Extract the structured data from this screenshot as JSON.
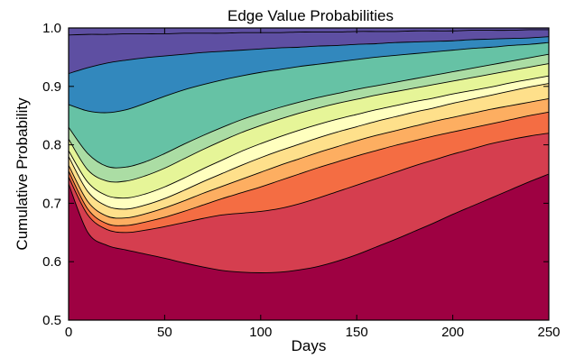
{
  "chart_data": {
    "type": "area",
    "stacked": true,
    "title": "Edge Value Probabilities",
    "xlabel": "Days",
    "ylabel": "Cumulative Probability",
    "xlim": [
      0,
      250
    ],
    "ylim": [
      0.5,
      1.0
    ],
    "xticks": [
      "0",
      "50",
      "100",
      "150",
      "200",
      "250"
    ],
    "yticks": [
      "0.5",
      "0.6",
      "0.7",
      "0.8",
      "0.9",
      "1.0"
    ],
    "grid": false,
    "legend": "none",
    "x": [
      0,
      10,
      20,
      30,
      40,
      50,
      60,
      70,
      80,
      90,
      100,
      110,
      120,
      130,
      140,
      150,
      160,
      170,
      180,
      190,
      200,
      210,
      220,
      230,
      240,
      250
    ],
    "boundaries": [
      {
        "color": "#9e0142",
        "values": [
          0.733,
          0.65,
          0.628,
          0.62,
          0.613,
          0.606,
          0.598,
          0.591,
          0.585,
          0.582,
          0.581,
          0.582,
          0.586,
          0.592,
          0.601,
          0.612,
          0.625,
          0.638,
          0.652,
          0.666,
          0.681,
          0.695,
          0.709,
          0.723,
          0.737,
          0.75
        ]
      },
      {
        "color": "#d53e4f",
        "values": [
          0.745,
          0.68,
          0.655,
          0.65,
          0.654,
          0.66,
          0.667,
          0.674,
          0.68,
          0.683,
          0.686,
          0.691,
          0.699,
          0.709,
          0.72,
          0.731,
          0.742,
          0.753,
          0.764,
          0.774,
          0.784,
          0.793,
          0.802,
          0.809,
          0.815,
          0.82
        ]
      },
      {
        "color": "#f46d43",
        "values": [
          0.755,
          0.69,
          0.665,
          0.662,
          0.668,
          0.676,
          0.686,
          0.697,
          0.708,
          0.718,
          0.728,
          0.739,
          0.75,
          0.761,
          0.771,
          0.781,
          0.79,
          0.799,
          0.807,
          0.815,
          0.822,
          0.829,
          0.836,
          0.843,
          0.85,
          0.856
        ]
      },
      {
        "color": "#fdae61",
        "values": [
          0.765,
          0.703,
          0.678,
          0.675,
          0.682,
          0.692,
          0.704,
          0.717,
          0.729,
          0.741,
          0.753,
          0.765,
          0.776,
          0.787,
          0.797,
          0.807,
          0.816,
          0.824,
          0.832,
          0.84,
          0.847,
          0.854,
          0.861,
          0.867,
          0.873,
          0.879
        ]
      },
      {
        "color": "#fee08b",
        "values": [
          0.78,
          0.72,
          0.695,
          0.69,
          0.697,
          0.708,
          0.722,
          0.737,
          0.751,
          0.765,
          0.778,
          0.79,
          0.801,
          0.812,
          0.822,
          0.831,
          0.84,
          0.848,
          0.856,
          0.863,
          0.871,
          0.878,
          0.885,
          0.892,
          0.899,
          0.905
        ]
      },
      {
        "color": "#ffffbf",
        "values": [
          0.79,
          0.736,
          0.713,
          0.709,
          0.716,
          0.728,
          0.743,
          0.759,
          0.774,
          0.789,
          0.802,
          0.814,
          0.825,
          0.835,
          0.844,
          0.852,
          0.86,
          0.867,
          0.874,
          0.88,
          0.887,
          0.893,
          0.899,
          0.906,
          0.912,
          0.918
        ]
      },
      {
        "color": "#e6f598",
        "values": [
          0.81,
          0.757,
          0.738,
          0.738,
          0.747,
          0.76,
          0.776,
          0.792,
          0.807,
          0.821,
          0.833,
          0.844,
          0.854,
          0.863,
          0.871,
          0.878,
          0.885,
          0.891,
          0.897,
          0.903,
          0.909,
          0.915,
          0.921,
          0.927,
          0.933,
          0.939
        ]
      },
      {
        "color": "#abdda4",
        "values": [
          0.83,
          0.785,
          0.763,
          0.762,
          0.771,
          0.785,
          0.801,
          0.816,
          0.83,
          0.843,
          0.854,
          0.864,
          0.873,
          0.881,
          0.888,
          0.895,
          0.901,
          0.907,
          0.913,
          0.919,
          0.925,
          0.931,
          0.937,
          0.943,
          0.949,
          0.955
        ]
      },
      {
        "color": "#66c2a5",
        "values": [
          0.869,
          0.858,
          0.855,
          0.86,
          0.871,
          0.883,
          0.894,
          0.903,
          0.911,
          0.918,
          0.924,
          0.929,
          0.934,
          0.938,
          0.942,
          0.946,
          0.95,
          0.953,
          0.956,
          0.959,
          0.962,
          0.965,
          0.967,
          0.97,
          0.972,
          0.975
        ]
      },
      {
        "color": "#3288bd",
        "values": [
          0.922,
          0.932,
          0.94,
          0.945,
          0.949,
          0.952,
          0.955,
          0.958,
          0.96,
          0.962,
          0.964,
          0.966,
          0.967,
          0.969,
          0.97,
          0.972,
          0.973,
          0.975,
          0.976,
          0.977,
          0.978,
          0.98,
          0.981,
          0.982,
          0.983,
          0.985
        ]
      },
      {
        "color": "#5e4fa2",
        "values": [
          0.988,
          0.989,
          0.989,
          0.99,
          0.99,
          0.99,
          0.991,
          0.991,
          0.991,
          0.992,
          0.992,
          0.992,
          0.993,
          0.993,
          0.993,
          0.994,
          0.994,
          0.994,
          0.995,
          0.995,
          0.995,
          0.996,
          0.996,
          0.996,
          0.997,
          0.997
        ]
      }
    ],
    "top_color": "#5e4fa2"
  }
}
